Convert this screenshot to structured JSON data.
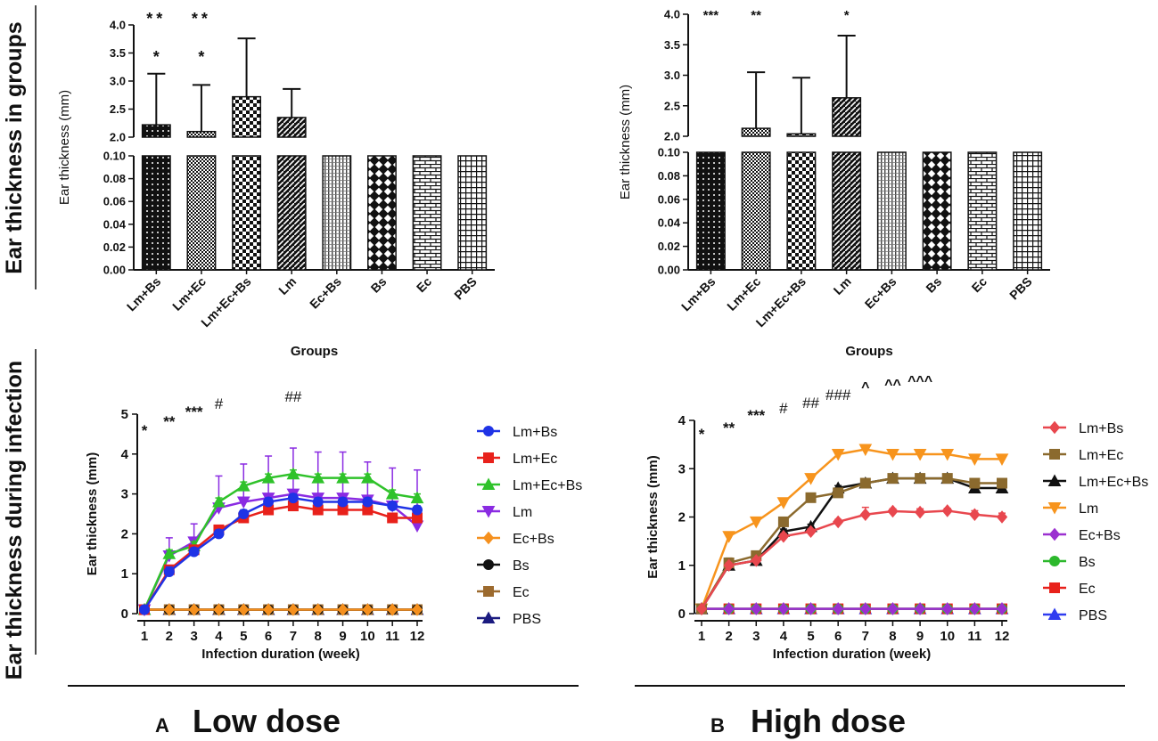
{
  "figure": {
    "row_labels": [
      "Ear thickness in groups",
      "Ear thickness during infection"
    ],
    "panel_letters": [
      "A",
      "B"
    ],
    "panel_titles": [
      "Low dose",
      "High dose"
    ]
  },
  "colors": {
    "Lm+Bs_low": "#1f33e6",
    "Lm+Ec_low": "#e8211b",
    "Lm+Ec+Bs_low": "#2fc22a",
    "Lm_low": "#8a2be2",
    "Ec+Bs_low": "#f5901e",
    "Bs_low": "#111111",
    "Ec_low": "#9c6a2e",
    "PBS_low": "#1b1b80",
    "Lm+Bs_high": "#e8474e",
    "Lm+Ec_high": "#8b6a2e",
    "Lm+Ec+Bs_high": "#111111",
    "Lm_high": "#f7941d",
    "Ec+Bs_high": "#9b30d0",
    "Bs_high": "#2cb82c",
    "Ec_high": "#e8211b",
    "PBS_high": "#2f3cf0"
  },
  "chart_data": [
    {
      "id": "A-bar",
      "type": "bar",
      "title": "",
      "xlabel": "Groups",
      "ylabel": "Ear thickness (mm)",
      "broken_axis": true,
      "ylim_lower": [
        0,
        0.1
      ],
      "ylim_upper": [
        2.0,
        4.0
      ],
      "yticks_lower": [
        "0.00",
        "0.02",
        "0.04",
        "0.06",
        "0.08",
        "0.10"
      ],
      "yticks_upper": [
        "2.0",
        "2.5",
        "3.0",
        "3.5",
        "4.0"
      ],
      "categories": [
        "Lm+Bs",
        "Lm+Ec",
        "Lm+Ec+Bs",
        "Lm",
        "Ec+Bs",
        "Bs",
        "Ec",
        "PBS"
      ],
      "values": [
        2.22,
        2.1,
        2.72,
        2.35,
        0.1,
        0.1,
        0.1,
        0.1
      ],
      "error_upper": [
        3.13,
        2.93,
        3.76,
        2.86,
        null,
        null,
        null,
        null
      ],
      "sig_lower": [
        "*",
        "*",
        "",
        "",
        "",
        "",
        "",
        ""
      ],
      "sig_upper": [
        "**",
        "**",
        "",
        "",
        "",
        "",
        "",
        ""
      ]
    },
    {
      "id": "B-bar",
      "type": "bar",
      "title": "",
      "xlabel": "Groups",
      "ylabel": "Ear thickness (mm)",
      "broken_axis": true,
      "ylim_lower": [
        0,
        0.1
      ],
      "ylim_upper": [
        2.0,
        4.0
      ],
      "yticks_lower": [
        "0.00",
        "0.02",
        "0.04",
        "0.06",
        "0.08",
        "0.10"
      ],
      "yticks_upper": [
        "2.0",
        "2.5",
        "3.0",
        "3.5",
        "4.0"
      ],
      "categories": [
        "Lm+Bs",
        "Lm+Ec",
        "Lm+Ec+Bs",
        "Lm",
        "Ec+Bs",
        "Bs",
        "Ec",
        "PBS"
      ],
      "values": [
        0.1,
        2.13,
        2.04,
        2.63,
        0.1,
        0.1,
        0.1,
        0.1
      ],
      "error_upper": [
        null,
        3.05,
        2.96,
        3.65,
        null,
        null,
        null,
        null
      ],
      "sig_upper": [
        "***",
        "**",
        "",
        "*",
        "",
        "",
        "",
        ""
      ]
    },
    {
      "id": "A-line",
      "type": "line",
      "title": "",
      "xlabel": "Infection duration (week)",
      "ylabel": "Ear thickness (mm)",
      "ylim": [
        0,
        5
      ],
      "xlim": [
        1,
        12
      ],
      "yticks": [
        "0",
        "1",
        "2",
        "3",
        "4",
        "5"
      ],
      "x": [
        1,
        2,
        3,
        4,
        5,
        6,
        7,
        8,
        9,
        10,
        11,
        12
      ],
      "series": [
        {
          "name": "Lm+Bs",
          "marker": "circle",
          "values": [
            0.1,
            1.05,
            1.55,
            2.0,
            2.5,
            2.8,
            2.9,
            2.8,
            2.8,
            2.8,
            2.7,
            2.6
          ],
          "err": [
            0,
            0.12,
            0.1,
            0.1,
            0.1,
            0.1,
            0.1,
            0.1,
            0.1,
            0.1,
            0.1,
            0.1
          ]
        },
        {
          "name": "Lm+Ec",
          "marker": "square",
          "values": [
            0.1,
            1.1,
            1.6,
            2.1,
            2.4,
            2.6,
            2.7,
            2.6,
            2.6,
            2.6,
            2.4,
            2.4
          ],
          "err": [
            0,
            0.1,
            0.1,
            0.1,
            0.1,
            0.1,
            0.1,
            0.1,
            0.1,
            0.1,
            0.1,
            0.1
          ]
        },
        {
          "name": "Lm+Ec+Bs",
          "marker": "triangle",
          "values": [
            0.1,
            1.5,
            1.7,
            2.8,
            3.2,
            3.4,
            3.5,
            3.4,
            3.4,
            3.4,
            3.0,
            2.9
          ],
          "err": [
            0,
            0.1,
            0.1,
            0.1,
            0.1,
            0.1,
            0.1,
            0.1,
            0.1,
            0.1,
            0.1,
            0.1
          ]
        },
        {
          "name": "Lm",
          "marker": "triangle-down",
          "values": [
            0.1,
            1.45,
            1.8,
            2.65,
            2.8,
            2.9,
            3.0,
            2.9,
            2.9,
            2.85,
            2.7,
            2.2
          ],
          "err": [
            0,
            0.45,
            0.45,
            0.8,
            0.95,
            1.05,
            1.15,
            1.15,
            1.15,
            0.95,
            0.95,
            1.4
          ]
        },
        {
          "name": "Ec+Bs",
          "marker": "diamond",
          "values": [
            0.1,
            0.1,
            0.1,
            0.1,
            0.1,
            0.1,
            0.1,
            0.1,
            0.1,
            0.1,
            0.1,
            0.1
          ],
          "err": [
            0,
            0,
            0,
            0,
            0,
            0,
            0,
            0,
            0,
            0,
            0,
            0
          ]
        },
        {
          "name": "Bs",
          "marker": "circle",
          "values": [
            0.1,
            0.1,
            0.1,
            0.1,
            0.1,
            0.1,
            0.1,
            0.1,
            0.1,
            0.1,
            0.1,
            0.1
          ],
          "err": [
            0,
            0,
            0,
            0,
            0,
            0,
            0,
            0,
            0,
            0,
            0,
            0
          ]
        },
        {
          "name": "Ec",
          "marker": "square",
          "values": [
            0.1,
            0.1,
            0.1,
            0.1,
            0.1,
            0.1,
            0.1,
            0.1,
            0.1,
            0.1,
            0.1,
            0.1
          ],
          "err": [
            0,
            0,
            0,
            0,
            0,
            0,
            0,
            0,
            0,
            0,
            0,
            0
          ]
        },
        {
          "name": "PBS",
          "marker": "triangle",
          "values": [
            0.1,
            0.1,
            0.1,
            0.1,
            0.1,
            0.1,
            0.1,
            0.1,
            0.1,
            0.1,
            0.1,
            0.1
          ],
          "err": [
            0,
            0,
            0,
            0,
            0,
            0,
            0,
            0,
            0,
            0,
            0,
            0
          ]
        }
      ],
      "annotations": [
        {
          "x": 1,
          "text": "*"
        },
        {
          "x": 2,
          "text": "**"
        },
        {
          "x": 3,
          "text": "***"
        },
        {
          "x": 4,
          "text": "#"
        },
        {
          "x": 7,
          "text": "##"
        }
      ],
      "legend": "right"
    },
    {
      "id": "B-line",
      "type": "line",
      "title": "",
      "xlabel": "Infection duration (week)",
      "ylabel": "Ear thickness (mm)",
      "ylim": [
        0,
        4
      ],
      "xlim": [
        1,
        12
      ],
      "yticks": [
        "0",
        "1",
        "2",
        "3",
        "4"
      ],
      "x": [
        1,
        2,
        3,
        4,
        5,
        6,
        7,
        8,
        9,
        10,
        11,
        12
      ],
      "series": [
        {
          "name": "Lm+Bs",
          "marker": "diamond",
          "values": [
            0.1,
            1.0,
            1.1,
            1.6,
            1.7,
            1.9,
            2.05,
            2.12,
            2.1,
            2.13,
            2.05,
            2.0
          ],
          "err": [
            0,
            0.05,
            0.05,
            0.05,
            0.05,
            0.05,
            0.15,
            0.05,
            0.07,
            0.05,
            0.08,
            0.08
          ]
        },
        {
          "name": "Lm+Ec",
          "marker": "square",
          "values": [
            0.1,
            1.05,
            1.2,
            1.9,
            2.4,
            2.5,
            2.7,
            2.8,
            2.8,
            2.8,
            2.7,
            2.7
          ],
          "err": [
            0,
            0.1,
            0.05,
            0.05,
            0.05,
            0.05,
            0.05,
            0.05,
            0.05,
            0.05,
            0.05,
            0.05
          ]
        },
        {
          "name": "Lm+Ec+Bs",
          "marker": "triangle",
          "values": [
            0.1,
            1.0,
            1.1,
            1.7,
            1.8,
            2.6,
            2.7,
            2.8,
            2.8,
            2.8,
            2.6,
            2.6
          ],
          "err": [
            0,
            0.05,
            0.05,
            0.05,
            0.05,
            0.05,
            0.05,
            0.05,
            0.05,
            0.05,
            0.05,
            0.05
          ]
        },
        {
          "name": "Lm",
          "marker": "triangle-down",
          "values": [
            0.1,
            1.6,
            1.9,
            2.3,
            2.8,
            3.3,
            3.4,
            3.3,
            3.3,
            3.3,
            3.2,
            3.2
          ],
          "err": [
            0,
            0,
            0,
            0,
            0,
            0,
            0,
            0,
            0,
            0,
            0,
            0
          ]
        },
        {
          "name": "Ec+Bs",
          "marker": "diamond",
          "values": [
            0.1,
            0.1,
            0.1,
            0.1,
            0.1,
            0.1,
            0.1,
            0.1,
            0.1,
            0.1,
            0.1,
            0.1
          ],
          "err": [
            0,
            0,
            0,
            0,
            0,
            0,
            0,
            0,
            0,
            0,
            0,
            0
          ]
        },
        {
          "name": "Bs",
          "marker": "circle",
          "values": [
            0.1,
            0.1,
            0.1,
            0.1,
            0.1,
            0.1,
            0.1,
            0.1,
            0.1,
            0.1,
            0.1,
            0.1
          ],
          "err": [
            0,
            0,
            0,
            0,
            0,
            0,
            0,
            0,
            0,
            0,
            0,
            0
          ]
        },
        {
          "name": "Ec",
          "marker": "square",
          "values": [
            0.1,
            0.1,
            0.1,
            0.1,
            0.1,
            0.1,
            0.1,
            0.1,
            0.1,
            0.1,
            0.1,
            0.1
          ],
          "err": [
            0,
            0,
            0,
            0,
            0,
            0,
            0,
            0,
            0,
            0,
            0,
            0
          ]
        },
        {
          "name": "PBS",
          "marker": "triangle",
          "values": [
            0.1,
            0.1,
            0.1,
            0.1,
            0.1,
            0.1,
            0.1,
            0.1,
            0.1,
            0.1,
            0.1,
            0.1
          ],
          "err": [
            0,
            0,
            0,
            0,
            0,
            0,
            0,
            0,
            0,
            0,
            0,
            0
          ]
        }
      ],
      "annotations": [
        {
          "x": 1,
          "text": "*"
        },
        {
          "x": 2,
          "text": "**"
        },
        {
          "x": 3,
          "text": "***"
        },
        {
          "x": 4,
          "text": "#"
        },
        {
          "x": 5,
          "text": "##"
        },
        {
          "x": 6,
          "text": "###"
        },
        {
          "x": 7,
          "text": "^"
        },
        {
          "x": 8,
          "text": "^^"
        },
        {
          "x": 9,
          "text": "^^^"
        }
      ],
      "legend": "right"
    }
  ]
}
